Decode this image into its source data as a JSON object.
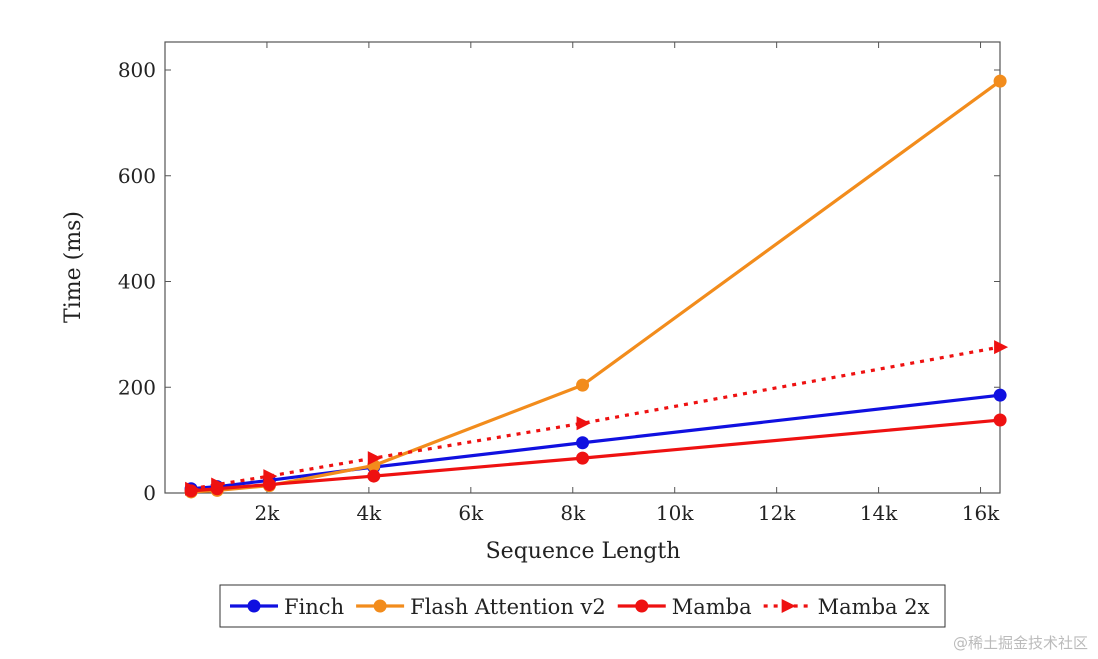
{
  "chart_data": {
    "type": "line",
    "title": "",
    "xlabel": "Sequence Length",
    "ylabel": "Time (ms)",
    "xlim": [
      0,
      16384
    ],
    "ylim": [
      0,
      860
    ],
    "xticks": [
      2000,
      4000,
      6000,
      8000,
      10000,
      12000,
      14000,
      16000
    ],
    "xtick_labels": [
      "2k",
      "4k",
      "6k",
      "8k",
      "10k",
      "12k",
      "14k",
      "16k"
    ],
    "yticks": [
      0,
      200,
      400,
      600,
      800
    ],
    "ytick_labels": [
      "0",
      "200",
      "400",
      "600",
      "800"
    ],
    "grid": false,
    "legend_position": "bottom-outside",
    "x": [
      512,
      1024,
      2048,
      4096,
      8192,
      16384
    ],
    "series": [
      {
        "name": "Finch",
        "color": "#1010e0",
        "style": "solid",
        "marker": "circle",
        "values": [
          8,
          12,
          24,
          49,
          95,
          185
        ]
      },
      {
        "name": "Flash Attention v2",
        "color": "#f28c1c",
        "style": "solid",
        "marker": "circle",
        "values": [
          2,
          5,
          14,
          52,
          204,
          779
        ]
      },
      {
        "name": "Mamba",
        "color": "#ee1111",
        "style": "solid",
        "marker": "circle",
        "values": [
          4,
          8,
          16,
          32,
          66,
          138
        ]
      },
      {
        "name": "Mamba 2x",
        "color": "#ee1111",
        "style": "dotted",
        "marker": "triangle",
        "values": [
          8,
          16,
          32,
          66,
          132,
          276
        ]
      }
    ]
  },
  "watermark": "@稀土掘金技术社区"
}
